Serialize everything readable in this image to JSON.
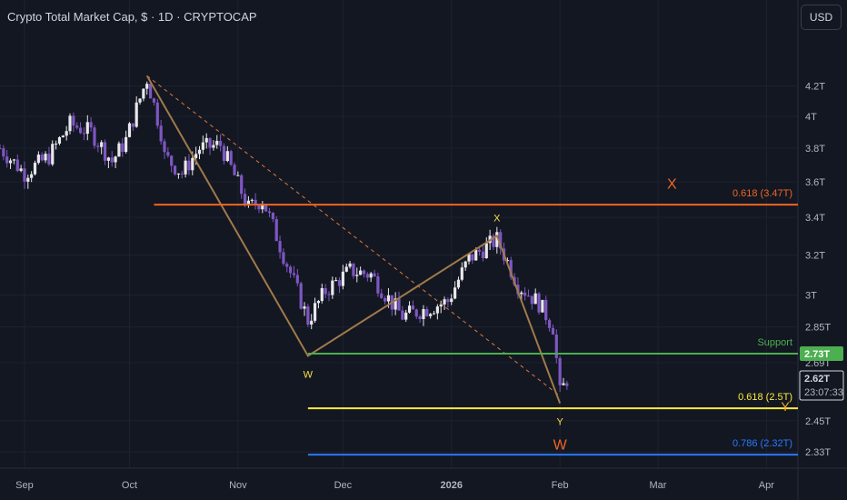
{
  "header": {
    "title": "Crypto Total Market Cap, $ · 1D · CRYPTOCAP",
    "currency_button": "USD"
  },
  "chart_data": {
    "type": "candlestick",
    "title": "Crypto Total Market Cap, $ · 1D · CRYPTOCAP",
    "y_axis": {
      "scale": "log",
      "ticks": [
        "4.2T",
        "4T",
        "3.8T",
        "3.6T",
        "3.4T",
        "3.2T",
        "3T",
        "2.85T",
        "2.69T",
        "2.45T",
        "2.33T"
      ],
      "tick_values": [
        4.2,
        4.0,
        3.8,
        3.6,
        3.4,
        3.2,
        3.0,
        2.85,
        2.69,
        2.45,
        2.33
      ],
      "range": [
        2.27,
        4.55
      ]
    },
    "x_axis": {
      "ticks": [
        "Sep",
        "Oct",
        "Nov",
        "Dec",
        "2026",
        "Feb",
        "Mar",
        "Apr"
      ],
      "tick_dates": [
        "2025-09-01",
        "2025-10-01",
        "2025-11-01",
        "2025-12-01",
        "2026-01-01",
        "2026-02-01",
        "2026-03-01",
        "2026-04-01"
      ],
      "range": [
        "2025-08-25",
        "2026-04-10"
      ]
    },
    "candle_colors": {
      "up": "#e8e8ec",
      "down": "#7e57c2"
    },
    "price_pivots": [
      [
        "2025-08-25",
        3.8
      ],
      [
        "2025-09-01",
        3.65
      ],
      [
        "2025-09-08",
        3.75
      ],
      [
        "2025-09-14",
        3.95
      ],
      [
        "2025-09-20",
        3.9
      ],
      [
        "2025-09-26",
        3.72
      ],
      [
        "2025-09-30",
        3.85
      ],
      [
        "2025-10-06",
        4.25
      ],
      [
        "2025-10-10",
        3.9
      ],
      [
        "2025-10-11",
        3.75
      ],
      [
        "2025-10-16",
        3.65
      ],
      [
        "2025-10-21",
        3.8
      ],
      [
        "2025-10-27",
        3.82
      ],
      [
        "2025-11-04",
        3.45
      ],
      [
        "2025-11-08",
        3.5
      ],
      [
        "2025-11-14",
        3.2
      ],
      [
        "2025-11-21",
        2.88
      ],
      [
        "2025-11-26",
        3.02
      ],
      [
        "2025-12-03",
        3.12
      ],
      [
        "2025-12-09",
        3.1
      ],
      [
        "2025-12-15",
        2.96
      ],
      [
        "2025-12-18",
        2.9
      ],
      [
        "2025-12-24",
        2.93
      ],
      [
        "2025-12-31",
        2.97
      ],
      [
        "2026-01-06",
        3.18
      ],
      [
        "2026-01-14",
        3.28
      ],
      [
        "2026-01-20",
        3.05
      ],
      [
        "2026-01-26",
        2.96
      ],
      [
        "2026-01-30",
        2.85
      ],
      [
        "2026-02-01",
        2.56
      ],
      [
        "2026-02-03",
        2.62
      ]
    ],
    "wxy_pattern": {
      "points": [
        {
          "date": "2025-10-06",
          "value": 4.27
        },
        {
          "label": "W",
          "date": "2025-11-21",
          "value": 2.72
        },
        {
          "label": "X",
          "date": "2026-01-14",
          "value": 3.3
        },
        {
          "label": "Y",
          "date": "2026-02-01",
          "value": 2.52
        }
      ],
      "color": "#a07a4a"
    },
    "trend_line_dashed": {
      "from": {
        "date": "2025-10-06",
        "value": 4.27
      },
      "to": {
        "date": "2026-02-01",
        "value": 2.55
      },
      "color": "#e07a3c"
    },
    "horizontal_levels": [
      {
        "name": "fib-0618-upper",
        "label": "0.618 (3.47T)",
        "value": 3.47,
        "from": "2025-10-08",
        "color": "#f26522"
      },
      {
        "name": "support",
        "label": "Support",
        "value": 2.73,
        "from": "2025-11-21",
        "color": "#4caf50"
      },
      {
        "name": "fib-0618-lower",
        "label": "0.618 (2.5T)",
        "value": 2.5,
        "from": "2025-11-21",
        "color": "#ffeb3b"
      },
      {
        "name": "fib-0786",
        "label": "0.786 (2.32T)",
        "value": 2.32,
        "from": "2025-11-21",
        "color": "#2979ff"
      }
    ],
    "projection_labels": [
      {
        "label": "X",
        "date": "2026-03-05",
        "value": 3.56,
        "color": "#f26522"
      },
      {
        "label": "Y",
        "date": "2026-04-10",
        "value": 2.49,
        "color": "#f5a623"
      },
      {
        "label": "W",
        "date": "2026-02-01",
        "value": 2.34,
        "color": "#f26522"
      }
    ],
    "price_badges": [
      {
        "name": "support-badge",
        "text": "2.73T",
        "value": 2.73,
        "bg": "#4caf50",
        "fg": "#ffffff"
      },
      {
        "name": "last-price-badge",
        "text": "2.62T",
        "countdown": "23:07:33",
        "value": 2.62,
        "bg": "#ffffff",
        "fg": "#131722"
      }
    ]
  }
}
